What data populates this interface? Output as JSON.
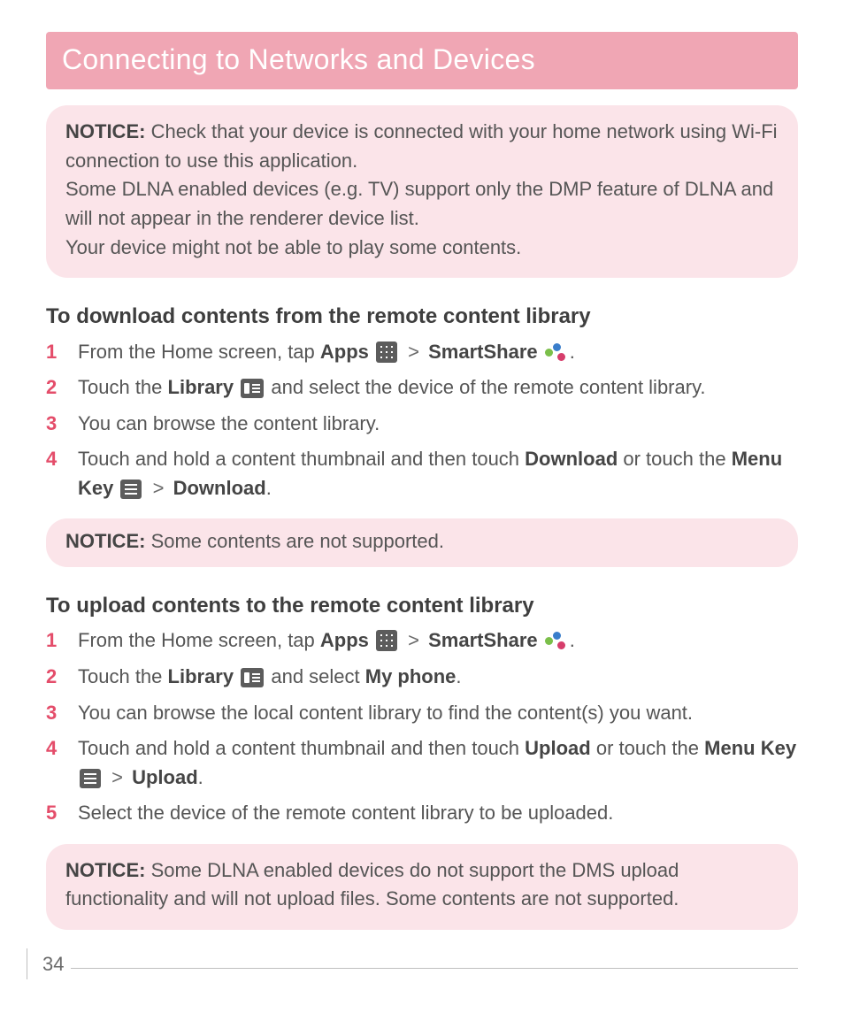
{
  "page": {
    "number": "34",
    "title": "Connecting to Networks and Devices",
    "colors": {
      "title_bg": "#f0a6b4",
      "title_text": "#ffffff",
      "notice_bg": "#fbe4e9",
      "body_text": "#555555",
      "strong_text": "#454545",
      "step_number": "#e44d6a",
      "rule": "#bfbfbf",
      "page_bg": "#ffffff"
    },
    "typography": {
      "title_fontsize": 32,
      "heading_fontsize": 24,
      "body_fontsize": 22,
      "line_height": 1.48
    }
  },
  "notice1": {
    "label": "NOTICE:",
    "line1": " Check that your device is connected with your home network using Wi-Fi connection to use this application.",
    "line2": "Some DLNA enabled devices (e.g. TV) support only the DMP feature of DLNA and will not appear in the renderer device list.",
    "line3": "Your device might not be able to play some contents."
  },
  "download": {
    "heading": "To download contents from the remote content library",
    "step1_a": "From the Home screen, tap ",
    "apps": "Apps",
    "gt": ">",
    "smartshare": "SmartShare",
    "period": ".",
    "step2_a": "Touch the ",
    "library": "Library",
    "step2_b": " and select the device of the remote content library.",
    "step3": "You can browse the content library.",
    "step4_a": "Touch and hold a content thumbnail and then touch ",
    "download_word": "Download",
    "step4_b": " or touch the ",
    "menu_key": "Menu Key",
    "step4_c": "."
  },
  "notice2": {
    "label": "NOTICE:",
    "text": " Some contents are not supported."
  },
  "upload": {
    "heading": "To upload contents to the remote content library",
    "step1_a": "From the Home screen, tap ",
    "step2_a": "Touch the ",
    "step2_b": " and select ",
    "my_phone": "My phone",
    "step3": "You can browse the local content library to find the content(s) you want.",
    "step4_a": "Touch and hold a content thumbnail and then touch ",
    "upload_word": "Upload",
    "step4_b": " or touch the ",
    "step5": "Select the device of the remote content library to be uploaded."
  },
  "notice3": {
    "label": "NOTICE:",
    "text": " Some DLNA enabled devices do not support the DMS upload functionality and will not upload files. Some contents are not supported."
  }
}
